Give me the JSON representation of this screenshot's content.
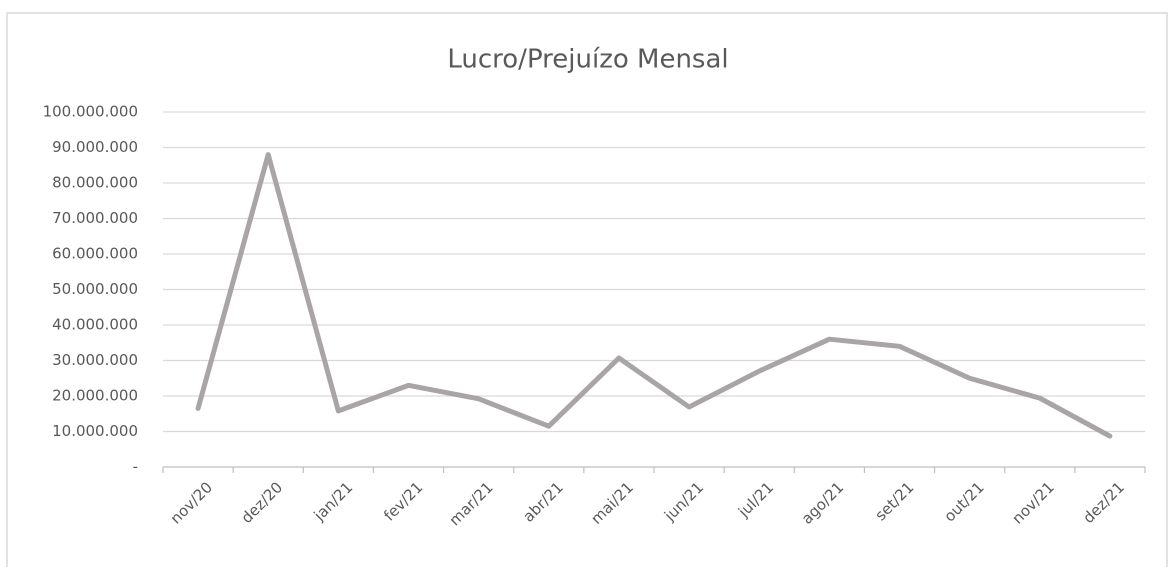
{
  "chart_data": {
    "type": "line",
    "title": "Lucro/Prejuízo Mensal",
    "categories": [
      "nov/20",
      "dez/20",
      "jan/21",
      "fev/21",
      "mar/21",
      "abr/21",
      "mai/21",
      "jun/21",
      "jul/21",
      "ago/21",
      "set/21",
      "out/21",
      "nov/21",
      "dez/21"
    ],
    "series": [
      {
        "name": "Lucro/Prejuízo",
        "color": "#a9a5a6",
        "values": [
          16500000,
          88000000,
          15800000,
          23000000,
          19200000,
          11500000,
          30700000,
          16900000,
          27000000,
          36000000,
          34000000,
          25000000,
          19400000,
          8700000
        ]
      }
    ],
    "ylim": [
      0,
      100000000
    ],
    "yticks": [
      {
        "value": 0,
        "label": "-"
      },
      {
        "value": 10000000,
        "label": "10.000.000"
      },
      {
        "value": 20000000,
        "label": "20.000.000"
      },
      {
        "value": 30000000,
        "label": "30.000.000"
      },
      {
        "value": 40000000,
        "label": "40.000.000"
      },
      {
        "value": 50000000,
        "label": "50.000.000"
      },
      {
        "value": 60000000,
        "label": "60.000.000"
      },
      {
        "value": 70000000,
        "label": "70.000.000"
      },
      {
        "value": 80000000,
        "label": "80.000.000"
      },
      {
        "value": 90000000,
        "label": "90.000.000"
      },
      {
        "value": 100000000,
        "label": "100.000.000"
      }
    ],
    "grid": true
  }
}
